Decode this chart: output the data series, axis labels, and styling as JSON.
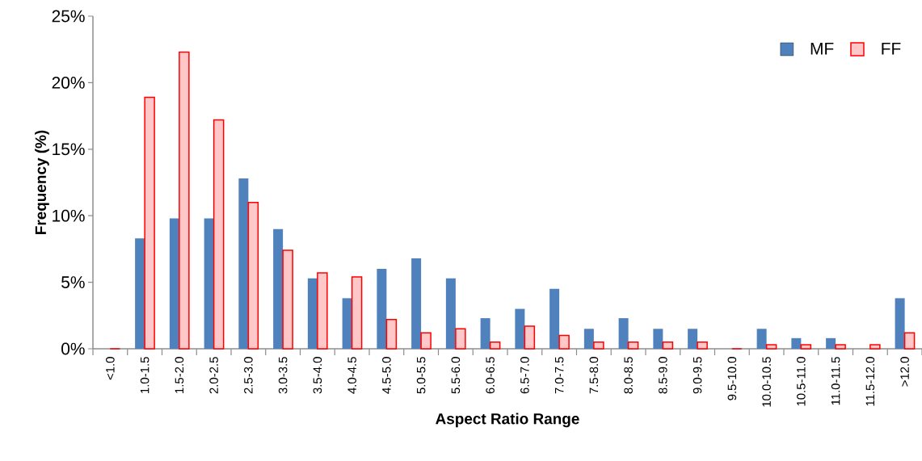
{
  "chart_data": {
    "type": "bar",
    "xlabel": "Aspect Ratio Range",
    "ylabel": "Frequency (%)",
    "categories": [
      "<1.0",
      "1.0-1.5",
      "1.5-2.0",
      "2.0-2.5",
      "2.5-3.0",
      "3.0-3.5",
      "3.5-4.0",
      "4.0-4.5",
      "4.5-5.0",
      "5.0-5.5",
      "5.5-6.0",
      "6.0-6.5",
      "6.5-7.0",
      "7.0-7.5",
      "7.5-8.0",
      "8.0-8.5",
      "8.5-9.0",
      "9.0-9.5",
      "9.5-10.0",
      "10.0-10.5",
      "10.5-11.0",
      "11.0-11.5",
      "11.5-12.0",
      ">12.0"
    ],
    "series": [
      {
        "name": "MF",
        "color": "#4f81bd",
        "values": [
          0,
          8.3,
          9.8,
          9.8,
          12.8,
          9.0,
          5.3,
          3.8,
          6.0,
          6.8,
          5.3,
          2.3,
          3.0,
          4.5,
          1.5,
          2.3,
          1.5,
          1.5,
          0,
          1.5,
          0.8,
          0.8,
          0,
          3.8
        ]
      },
      {
        "name": "FF",
        "color": "#ff0000",
        "values": [
          0,
          18.9,
          22.3,
          17.2,
          11.0,
          7.4,
          5.7,
          5.4,
          2.2,
          1.2,
          1.5,
          0.5,
          1.7,
          1.0,
          0.5,
          0.5,
          0.5,
          0.5,
          0,
          0.3,
          0.3,
          0.3,
          0.3,
          1.2
        ]
      }
    ],
    "ylim": [
      0,
      25
    ],
    "yticks": [
      {
        "value": 0,
        "label": "0%"
      },
      {
        "value": 5,
        "label": "5%"
      },
      {
        "value": 10,
        "label": "10%"
      },
      {
        "value": 15,
        "label": "15%"
      },
      {
        "value": 20,
        "label": "20%"
      },
      {
        "value": 25,
        "label": "25%"
      }
    ],
    "grid": false,
    "legend": "top right"
  }
}
